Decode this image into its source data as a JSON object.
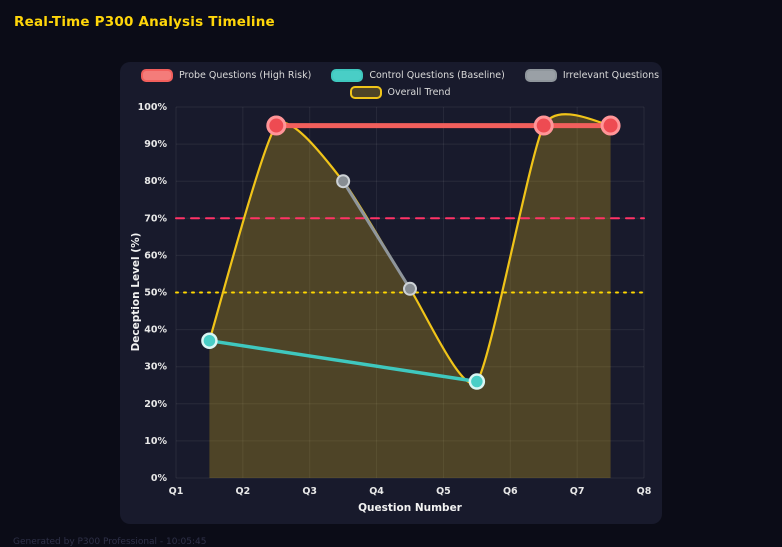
{
  "page": {
    "title": "Real-Time P300 Analysis Timeline",
    "footer": "Generated by P300 Professional - 10:05:45"
  },
  "colors": {
    "title": "#ffd60a",
    "page_bg": "#0b0c17",
    "panel_bg": "#181a2c",
    "footer_text": "#2f3148",
    "legend_text": "#d9d9d9",
    "probe": "#f25f5c",
    "control": "#3fc8bf",
    "irrelevant": "#8f969c",
    "trend": "#f0c419",
    "threshold_high_risk": "#ff3366",
    "threshold_baseline": "#ffd700"
  },
  "chart_data": {
    "type": "line",
    "title": "Real-Time P300 Analysis Timeline",
    "xlabel": "Question Number",
    "ylabel": "Deception Level (%)",
    "xlim": [
      1,
      8
    ],
    "ylim": [
      0,
      100
    ],
    "x_ticks": [
      "Q1",
      "Q2",
      "Q3",
      "Q4",
      "Q5",
      "Q6",
      "Q7",
      "Q8"
    ],
    "y_ticks": [
      "0%",
      "10%",
      "20%",
      "30%",
      "40%",
      "50%",
      "60%",
      "70%",
      "80%",
      "90%",
      "100%"
    ],
    "grid_on": true,
    "grid_color": "rgba(255,255,255,0.07)",
    "tick_color": "#e8e8e8",
    "legend_position": "top",
    "series": [
      {
        "name": "Probe Questions (High Risk)",
        "color": "#f25f5c",
        "swatch_fill": "#f47c7a",
        "point_fill": "#ee4b52",
        "point_stroke": "#ff9598",
        "point_stroke_width": 3,
        "point_radius": 8.5,
        "line_width": 5,
        "smooth": false,
        "area": false,
        "x": [
          2.5,
          6.5,
          7.5
        ],
        "y": [
          95,
          95,
          95
        ]
      },
      {
        "name": "Control Questions (Baseline)",
        "color": "#3fc8bf",
        "swatch_fill": "#49cec6",
        "point_fill": "#49cec6",
        "point_stroke": "#d9f6f4",
        "point_stroke_width": 2.5,
        "point_radius": 7,
        "line_width": 3.5,
        "smooth": false,
        "area": false,
        "x": [
          1.5,
          5.5
        ],
        "y": [
          37,
          26
        ]
      },
      {
        "name": "Irrelevant Questions",
        "color": "#8f969c",
        "swatch_fill": "#9aa0a6",
        "point_fill": "#878d93",
        "point_stroke": "#cdd2d6",
        "point_stroke_width": 2,
        "point_radius": 6,
        "line_width": 3,
        "smooth": false,
        "area": false,
        "x": [
          3.5,
          4.5
        ],
        "y": [
          80,
          51
        ]
      },
      {
        "name": "Overall Trend",
        "color": "#f0c419",
        "swatch_fill": "rgba(240,196,25,0.25)",
        "point_fill": "none",
        "point_stroke": "none",
        "point_stroke_width": 0,
        "point_radius": 0,
        "line_width": 2.2,
        "smooth": true,
        "area": true,
        "area_color": "rgba(240,196,25,0.25)",
        "x": [
          1.5,
          2.5,
          3.5,
          4.5,
          5.5,
          6.5,
          7.5
        ],
        "y": [
          37,
          95,
          80,
          51,
          26,
          95,
          95
        ]
      }
    ],
    "thresholds": [
      {
        "name": "high-risk-threshold-line",
        "y": 70,
        "color": "#ff3366",
        "dash": "8 7",
        "width": 2
      },
      {
        "name": "baseline-threshold-line",
        "y": 50,
        "color": "#ffd700",
        "dash": "2 6",
        "width": 2
      }
    ]
  }
}
